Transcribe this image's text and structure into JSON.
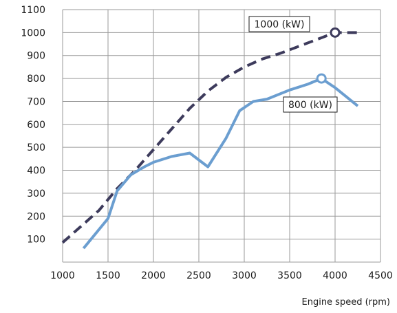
{
  "chart_data": {
    "type": "line",
    "xlabel": "Engine speed (rpm)",
    "ylabel": "",
    "xlim": [
      1000,
      4500
    ],
    "ylim": [
      0,
      1100
    ],
    "x_ticks": [
      1000,
      1500,
      2000,
      2500,
      3000,
      3500,
      4000,
      4500
    ],
    "y_ticks": [
      100,
      200,
      300,
      400,
      500,
      600,
      700,
      800,
      900,
      1000,
      1100
    ],
    "grid": true,
    "series": [
      {
        "name": "1000 (kW)",
        "style": "dashed",
        "color": "#3d3b5c",
        "x": [
          1000,
          1200,
          1400,
          1600,
          1800,
          2000,
          2200,
          2400,
          2600,
          2800,
          3000,
          3200,
          3400,
          3600,
          3800,
          4000,
          4250
        ],
        "y": [
          85,
          155,
          225,
          320,
          400,
          490,
          580,
          670,
          745,
          805,
          850,
          885,
          910,
          940,
          970,
          1000,
          1000
        ],
        "marker": {
          "x": 4000,
          "y": 1000
        }
      },
      {
        "name": "800 (kW)",
        "style": "solid",
        "color": "#6b9ed0",
        "x": [
          1230,
          1500,
          1600,
          1750,
          1900,
          2000,
          2200,
          2400,
          2600,
          2800,
          2950,
          3100,
          3250,
          3500,
          3700,
          3850,
          4000,
          4250
        ],
        "y": [
          60,
          190,
          310,
          380,
          415,
          435,
          460,
          475,
          415,
          540,
          660,
          700,
          710,
          750,
          775,
          800,
          760,
          680
        ],
        "marker": {
          "x": 3850,
          "y": 800
        }
      }
    ],
    "annotations": [
      {
        "text": "1000 (kW)",
        "series": 0
      },
      {
        "text": "800 (kW)",
        "series": 1
      }
    ]
  }
}
